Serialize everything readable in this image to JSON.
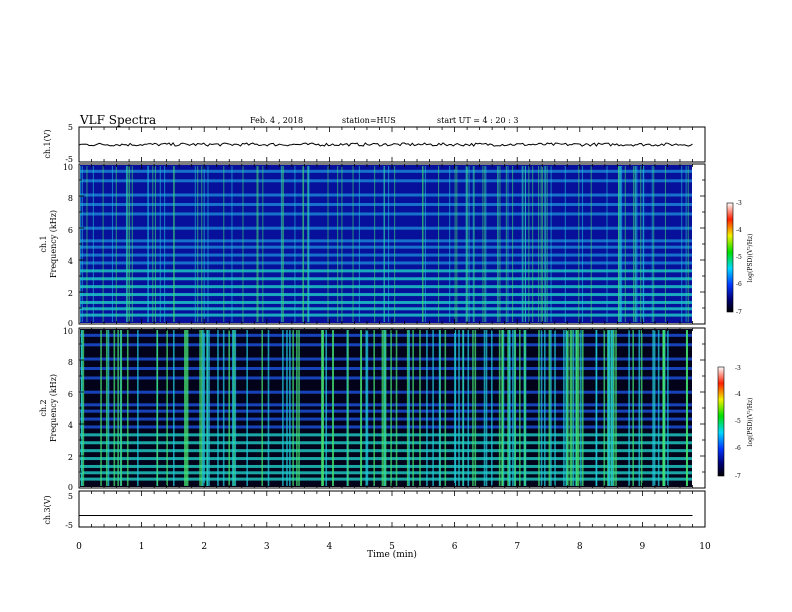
{
  "header": {
    "title": "VLF Spectra",
    "date": "Feb. 4 , 2018",
    "station": "station=HUS",
    "start_ut": "start  UT =   4 : 20 : 3"
  },
  "chart_data": [
    {
      "type": "line",
      "panel": "ch1-waveform",
      "ylabel": "ch.1(V)",
      "ylim": [
        -5,
        5
      ],
      "yticks": [
        "5",
        "-5"
      ],
      "xlim": [
        0,
        10
      ],
      "series": [
        {
          "x": [
            0,
            9.8
          ],
          "values": [
            0,
            0
          ]
        }
      ]
    },
    {
      "type": "heatmap",
      "panel": "ch1-spectrogram",
      "ylabel": "ch.1\nFrequency (kHz)",
      "ylim": [
        0,
        10
      ],
      "yticks": [
        "0",
        "2",
        "4",
        "6",
        "8",
        "10"
      ],
      "xlim": [
        0,
        9.8
      ],
      "colorbar": {
        "label": "log(PSD)(V²/Hz)",
        "range": [
          -7,
          -3
        ],
        "ticks": [
          "-3",
          "-4",
          "-5",
          "-6",
          "-7"
        ]
      }
    },
    {
      "type": "heatmap",
      "panel": "ch2-spectrogram",
      "ylabel": "ch.2\nFrequency (kHz)",
      "ylim": [
        0,
        10
      ],
      "yticks": [
        "0",
        "2",
        "4",
        "6",
        "8",
        "10"
      ],
      "xlim": [
        0,
        9.8
      ],
      "colorbar": {
        "label": "log(PSD)(V²/Hz)",
        "range": [
          -7,
          -3
        ],
        "ticks": [
          "-3",
          "-4",
          "-5",
          "-6",
          "-7"
        ]
      }
    },
    {
      "type": "line",
      "panel": "ch3-waveform",
      "ylabel": "ch.3(V)",
      "ylim": [
        -5,
        5
      ],
      "yticks": [
        "5",
        "-5"
      ],
      "xlim": [
        0,
        10
      ],
      "series": [
        {
          "x": [
            0,
            9.8
          ],
          "values": [
            -1.8,
            -1.8
          ]
        }
      ]
    }
  ],
  "x_axis": {
    "label": "Time (min)",
    "ticks": [
      "0",
      "1",
      "2",
      "3",
      "4",
      "5",
      "6",
      "7",
      "8",
      "9",
      "10"
    ]
  }
}
